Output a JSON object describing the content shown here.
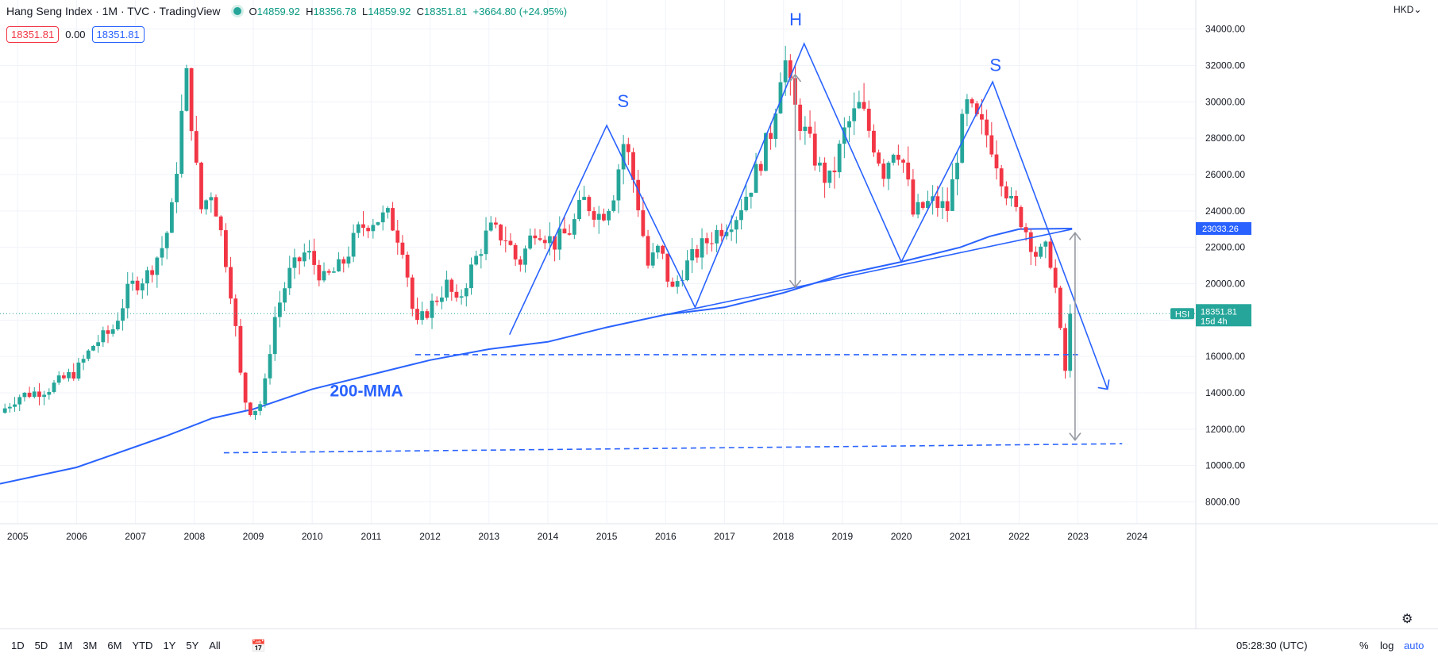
{
  "legend": {
    "symbol_title": "Hang Seng Index · 1M · TVC · TradingView",
    "ohlc": {
      "o_label": "O",
      "o": "14859.92",
      "h_label": "H",
      "h": "18356.78",
      "l_label": "L",
      "l": "14859.92",
      "c_label": "C",
      "c": "18351.81",
      "change": "+3664.80 (+24.95%)"
    }
  },
  "quotes": {
    "bid": "18351.81",
    "spread": "0.00",
    "ask": "18351.81"
  },
  "currency_button": "HKD",
  "price_tags": {
    "hsi_label": "HSI",
    "hsi_value": "18351.81",
    "hsi_countdown": "15d 4h",
    "ma_value": "23033.26"
  },
  "bottom": {
    "ranges": [
      "1D",
      "5D",
      "1M",
      "3M",
      "6M",
      "YTD",
      "1Y",
      "5Y",
      "All"
    ],
    "time": "05:28:30 (UTC)",
    "percent": "%",
    "log": "log",
    "auto": "auto"
  },
  "annotations": {
    "s_left": "S",
    "h": "H",
    "s_right": "S",
    "ma_label": "200-MMA"
  },
  "colors": {
    "up": "#26a69a",
    "down": "#f23645",
    "trendline": "#2962ff",
    "arrow": "#9598a1",
    "price_line": "#26a69a"
  },
  "chart_data": {
    "type": "candlestick",
    "title": "Hang Seng Index · 1M · TVC · TradingView",
    "x_ticks": [
      "2005",
      "2006",
      "2007",
      "2008",
      "2009",
      "2010",
      "2011",
      "2012",
      "2013",
      "2014",
      "2015",
      "2016",
      "2017",
      "2018",
      "2019",
      "2020",
      "2021",
      "2022",
      "2023",
      "2024"
    ],
    "y_ticks": [
      "8000.00",
      "10000.00",
      "12000.00",
      "14000.00",
      "16000.00",
      "18000.00",
      "20000.00",
      "22000.00",
      "24000.00",
      "26000.00",
      "28000.00",
      "30000.00",
      "32000.00",
      "34000.00"
    ],
    "ylim": [
      6800,
      35600
    ],
    "xlim": [
      2004.7,
      2025.0
    ],
    "grid": true,
    "anchors": [
      [
        2004.7,
        12900
      ],
      [
        2005.0,
        13800
      ],
      [
        2005.5,
        14200
      ],
      [
        2006.0,
        15200
      ],
      [
        2006.3,
        16700
      ],
      [
        2006.6,
        17400
      ],
      [
        2006.9,
        19800
      ],
      [
        2007.2,
        20500
      ],
      [
        2007.45,
        22000
      ],
      [
        2007.6,
        23500
      ],
      [
        2007.75,
        28000
      ],
      [
        2007.85,
        31800
      ],
      [
        2007.95,
        29000
      ],
      [
        2008.1,
        24000
      ],
      [
        2008.3,
        25200
      ],
      [
        2008.5,
        22000
      ],
      [
        2008.65,
        19000
      ],
      [
        2008.78,
        15000
      ],
      [
        2008.9,
        13000
      ],
      [
        2009.1,
        13200
      ],
      [
        2009.2,
        14500
      ],
      [
        2009.35,
        18000
      ],
      [
        2009.6,
        20500
      ],
      [
        2009.9,
        21800
      ],
      [
        2010.2,
        20200
      ],
      [
        2010.5,
        21000
      ],
      [
        2010.8,
        23000
      ],
      [
        2011.0,
        23500
      ],
      [
        2011.3,
        23700
      ],
      [
        2011.55,
        22000
      ],
      [
        2011.75,
        17500
      ],
      [
        2011.95,
        18500
      ],
      [
        2012.3,
        20000
      ],
      [
        2012.45,
        18800
      ],
      [
        2012.7,
        20800
      ],
      [
        2013.0,
        23000
      ],
      [
        2013.3,
        22500
      ],
      [
        2013.5,
        21000
      ],
      [
        2013.8,
        23200
      ],
      [
        2014.1,
        22200
      ],
      [
        2014.4,
        23000
      ],
      [
        2014.6,
        24600
      ],
      [
        2014.9,
        23700
      ],
      [
        2015.1,
        24800
      ],
      [
        2015.3,
        28000
      ],
      [
        2015.5,
        25000
      ],
      [
        2015.7,
        21000
      ],
      [
        2015.9,
        22000
      ],
      [
        2016.1,
        19500
      ],
      [
        2016.3,
        20800
      ],
      [
        2016.6,
        22000
      ],
      [
        2016.85,
        22800
      ],
      [
        2017.2,
        23800
      ],
      [
        2017.5,
        25800
      ],
      [
        2017.8,
        28500
      ],
      [
        2018.0,
        32800
      ],
      [
        2018.15,
        30000
      ],
      [
        2018.4,
        28000
      ],
      [
        2018.65,
        26000
      ],
      [
        2018.8,
        25600
      ],
      [
        2019.05,
        28500
      ],
      [
        2019.3,
        29800
      ],
      [
        2019.5,
        28000
      ],
      [
        2019.7,
        26200
      ],
      [
        2019.9,
        27800
      ],
      [
        2020.05,
        26500
      ],
      [
        2020.2,
        23800
      ],
      [
        2020.5,
        24500
      ],
      [
        2020.8,
        24100
      ],
      [
        2020.95,
        27200
      ],
      [
        2021.1,
        29800
      ],
      [
        2021.3,
        28800
      ],
      [
        2021.5,
        28000
      ],
      [
        2021.7,
        26000
      ],
      [
        2021.9,
        24000
      ],
      [
        2022.0,
        23800
      ],
      [
        2022.15,
        22700
      ],
      [
        2022.3,
        21500
      ],
      [
        2022.5,
        21900
      ],
      [
        2022.6,
        20200
      ],
      [
        2022.7,
        17200
      ],
      [
        2022.8,
        14800
      ],
      [
        2022.9,
        18352
      ]
    ],
    "series": [
      {
        "name": "200-MMA",
        "x": [
          2004.7,
          2006.0,
          2007.5,
          2008.3,
          2009.0,
          2010.0,
          2011.0,
          2012.0,
          2013.0,
          2014.0,
          2015.0,
          2016.0,
          2017.0,
          2018.0,
          2019.0,
          2020.0,
          2021.0,
          2021.5,
          2022.0,
          2022.9
        ],
        "values": [
          9000,
          9900,
          11600,
          12600,
          13100,
          14200,
          15000,
          15800,
          16400,
          16800,
          17600,
          18300,
          18700,
          19500,
          20500,
          21200,
          22000,
          22600,
          23000,
          23033
        ]
      }
    ],
    "last_price": 18351.81
  }
}
